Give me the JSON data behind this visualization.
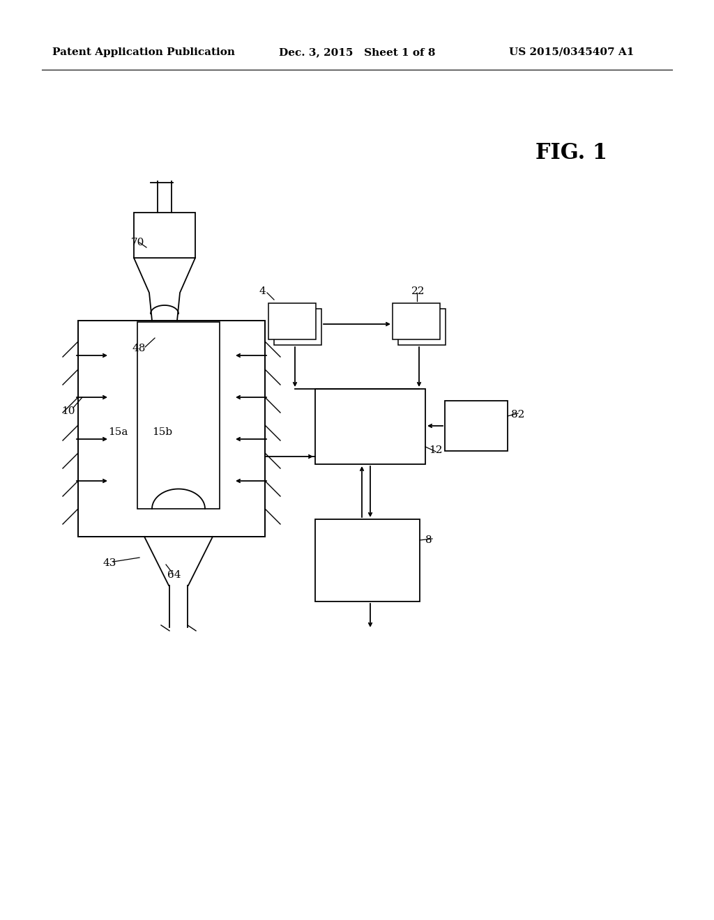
{
  "bg_color": "#ffffff",
  "line_color": "#000000",
  "header_left": "Patent Application Publication",
  "header_mid": "Dec. 3, 2015   Sheet 1 of 8",
  "header_right": "US 2015/0345407 A1",
  "fig_label": "FIG. 1"
}
